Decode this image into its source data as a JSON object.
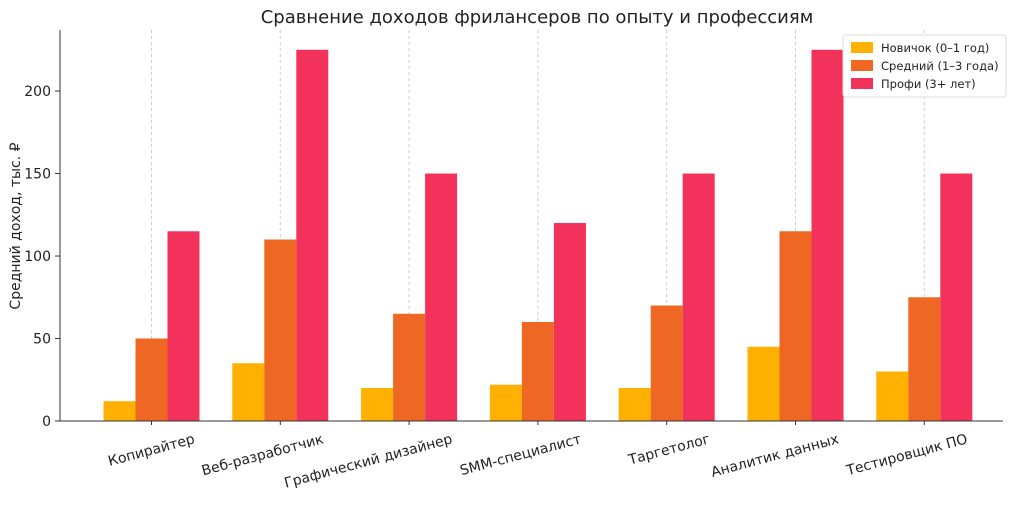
{
  "chart_data": {
    "type": "bar",
    "title": "Сравнение доходов фрилансеров по опыту и профессиям",
    "xlabel": "",
    "ylabel": "Средний доход, тыс. ₽",
    "ylim": [
      0,
      237
    ],
    "yticks": [
      0,
      50,
      100,
      150,
      200
    ],
    "grid": "x-dashed",
    "legend_position": "top-right",
    "categories": [
      "Копирайтер",
      "Веб-разработчик",
      "Графический дизайнер",
      "SMM-специалист",
      "Таргетолог",
      "Аналитик данных",
      "Тестировщик ПО"
    ],
    "series": [
      {
        "name": "Новичок (0–1 год)",
        "color": "#FFB000",
        "values": [
          12,
          35,
          20,
          22,
          20,
          45,
          30
        ]
      },
      {
        "name": "Средний (1–3 года)",
        "color": "#EE6823",
        "values": [
          50,
          110,
          65,
          60,
          70,
          115,
          75
        ]
      },
      {
        "name": "Профи (3+ лет)",
        "color": "#F2325A",
        "values": [
          115,
          225,
          150,
          120,
          150,
          225,
          150
        ]
      }
    ]
  }
}
